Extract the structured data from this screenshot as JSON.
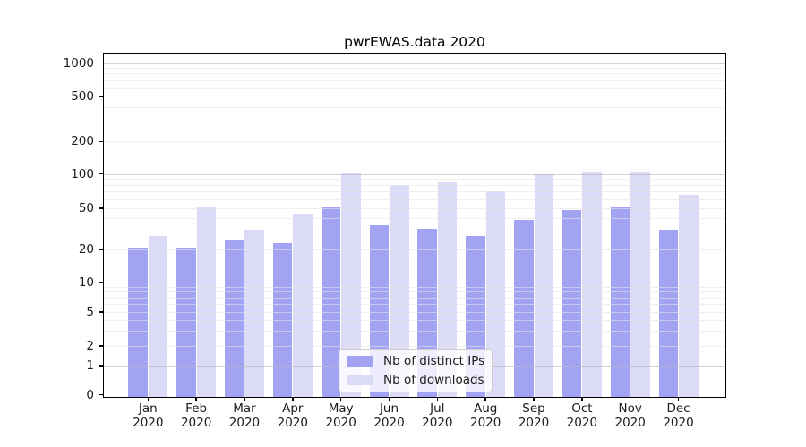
{
  "chart_data": {
    "type": "bar",
    "title": "pwrEWAS.data 2020",
    "year": "2020",
    "categories": [
      "Jan",
      "Feb",
      "Mar",
      "Apr",
      "May",
      "Jun",
      "Jul",
      "Aug",
      "Sep",
      "Oct",
      "Nov",
      "Dec"
    ],
    "series": [
      {
        "name": "Nb of distinct IPs",
        "color": "#a3a3f3",
        "values": [
          21,
          21,
          25,
          23,
          51,
          34,
          32,
          27,
          39,
          48,
          51,
          31
        ]
      },
      {
        "name": "Nb of downloads",
        "color": "#dbdbf8",
        "values": [
          27,
          51,
          31,
          44,
          102,
          80,
          85,
          71,
          100,
          105,
          105,
          65
        ]
      }
    ],
    "xlabel": "",
    "ylabel": "",
    "y_ticks": [
      0,
      1,
      2,
      5,
      10,
      20,
      50,
      100,
      200,
      500,
      1000
    ],
    "yscale": "pseudo-log (asinh-like, includes 0)",
    "ylim": [
      0,
      1300
    ],
    "grid": "horizontal major (decades) + minor (2-9 per decade)",
    "legend_position": "inside bottom-center",
    "frame_color": "#000000",
    "major_grid_values": [
      1,
      10,
      100,
      1000
    ],
    "minor_grid_values": [
      2,
      3,
      4,
      5,
      6,
      7,
      8,
      9,
      20,
      30,
      40,
      50,
      60,
      70,
      80,
      90,
      200,
      300,
      400,
      500,
      600,
      700,
      800,
      900
    ]
  }
}
